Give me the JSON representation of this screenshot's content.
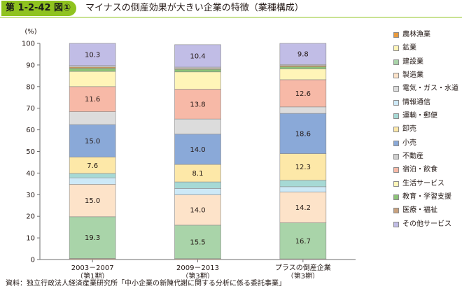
{
  "figure": {
    "label": "第 1-2-42 図①",
    "title": "マイナスの倒産効果が大きい企業の特徴（業種構成）",
    "source": "資料：独立行政法人経済産業研究所「中小企業の新陳代謝に関する分析に係る委託事業」"
  },
  "chart_data": {
    "type": "bar",
    "stacked": true,
    "ylabel": "(%)",
    "ylim": [
      0,
      100
    ],
    "yticks": [
      0,
      10,
      20,
      30,
      40,
      50,
      60,
      70,
      80,
      90,
      100
    ],
    "grid": false,
    "legend_position": "right",
    "categories": [
      [
        "2003－2007",
        "（第1期）"
      ],
      [
        "2009－2013",
        "（第3期）"
      ],
      [
        "プラスの倒産企業",
        "（第3期）"
      ]
    ],
    "series": [
      {
        "name": "医療・福祉",
        "color": "#c9a27e",
        "values": [
          0.5,
          0.4,
          0.3
        ]
      },
      {
        "name": "建設業",
        "color": "#a9d4a9",
        "values": [
          19.3,
          15.5,
          16.7
        ]
      },
      {
        "name": "製造業",
        "color": "#fde3c9",
        "values": [
          15.0,
          14.0,
          14.2
        ]
      },
      {
        "name": "情報通信",
        "color": "#cde9f7",
        "values": [
          3.0,
          3.0,
          2.5
        ]
      },
      {
        "name": "運輸・郵便",
        "color": "#a6d9d5",
        "values": [
          2.0,
          3.0,
          3.0
        ]
      },
      {
        "name": "卸売",
        "color": "#fde8a8",
        "values": [
          7.6,
          8.1,
          12.3
        ]
      },
      {
        "name": "小売",
        "color": "#8aa9d8",
        "values": [
          15.0,
          14.0,
          18.6
        ]
      },
      {
        "name": "電気・ガス・水道",
        "color": "#dcdcdc",
        "values": [
          6.0,
          7.0,
          3.0
        ]
      },
      {
        "name": "宿泊・飲食",
        "color": "#f7b9a7",
        "values": [
          11.6,
          13.8,
          12.6
        ]
      },
      {
        "name": "生活サービス",
        "color": "#fff5b8",
        "values": [
          7.0,
          8.0,
          5.0
        ]
      },
      {
        "name": "教育・学習支援",
        "color": "#8cc378",
        "values": [
          1.5,
          1.2,
          1.0
        ]
      },
      {
        "name": "農林漁業",
        "color": "#e89a3e",
        "values": [
          0.5,
          0.3,
          0.5
        ]
      },
      {
        "name": "不動産",
        "color": "#cfcfcf",
        "values": [
          0.7,
          0.7,
          0.5
        ]
      },
      {
        "name": "その他サービス",
        "color": "#c1bde6",
        "values": [
          10.3,
          10.4,
          9.8
        ]
      }
    ],
    "data_labels": [
      {
        "series": "建設業",
        "texts": [
          "19.3",
          "15.5",
          "16.7"
        ]
      },
      {
        "series": "製造業",
        "texts": [
          "15.0",
          "14.0",
          "14.2"
        ]
      },
      {
        "series": "卸売",
        "texts": [
          "7.6",
          "8.1",
          "12.3"
        ]
      },
      {
        "series": "小売",
        "texts": [
          "15.0",
          "14.0",
          "18.6"
        ]
      },
      {
        "series": "宿泊・飲食",
        "texts": [
          "11.6",
          "13.8",
          "12.6"
        ]
      },
      {
        "series": "その他サービス",
        "texts": [
          "10.3",
          "10.4",
          "9.8"
        ]
      }
    ],
    "legend_order": [
      "農林漁業",
      "鉱業",
      "建設業",
      "製造業",
      "電気・ガス・水道",
      "情報通信",
      "運輸・郵便",
      "卸売",
      "小売",
      "不動産",
      "宿泊・飲食",
      "生活サービス",
      "教育・学習支援",
      "医療・福祉",
      "その他サービス"
    ],
    "legend_colors": {
      "農林漁業": "#e89a3e",
      "鉱業": "#fff5b8",
      "建設業": "#a9d4a9",
      "製造業": "#fde3c9",
      "電気・ガス・水道": "#dcdcdc",
      "情報通信": "#cde9f7",
      "運輸・郵便": "#a6d9d5",
      "卸売": "#fde8a8",
      "小売": "#8aa9d8",
      "不動産": "#cfcfcf",
      "宿泊・飲食": "#f7b9a7",
      "生活サービス": "#fff5b8",
      "教育・学習支援": "#8cc378",
      "医療・福祉": "#c9a27e",
      "その他サービス": "#c1bde6"
    }
  }
}
